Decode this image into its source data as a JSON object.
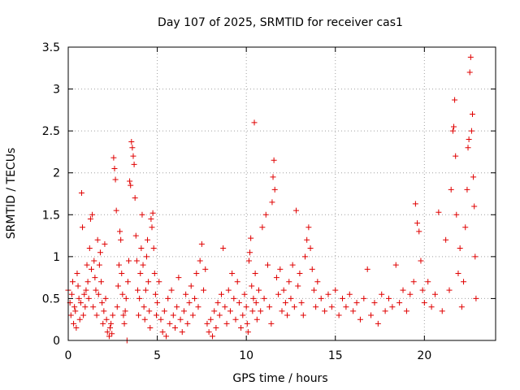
{
  "chart_data": {
    "type": "scatter",
    "title": "Day 107 of 2025, SRMTID for receiver cas1",
    "xlabel": "GPS time / hours",
    "ylabel": "SRMTID / TECUs",
    "xlim": [
      0,
      24
    ],
    "ylim": [
      0,
      3.5
    ],
    "xticks": [
      0,
      5,
      10,
      15,
      20
    ],
    "xtick_labels": [
      "0",
      "5",
      "10",
      "15",
      "20"
    ],
    "yticks": [
      0,
      0.5,
      1,
      1.5,
      2,
      2.5,
      3,
      3.5
    ],
    "ytick_labels": [
      "0",
      "0.5",
      "1",
      "1.5",
      "2",
      "2.5",
      "3",
      "3.5"
    ],
    "grid": true,
    "marker": "+",
    "color": "#e00000",
    "series": [
      {
        "name": "cas1",
        "points": [
          [
            0.0,
            0.6
          ],
          [
            0.1,
            0.45
          ],
          [
            0.15,
            0.3
          ],
          [
            0.2,
            0.55
          ],
          [
            0.25,
            0.7
          ],
          [
            0.3,
            0.2
          ],
          [
            0.35,
            0.4
          ],
          [
            0.4,
            0.35
          ],
          [
            0.45,
            0.15
          ],
          [
            0.5,
            0.8
          ],
          [
            0.55,
            0.65
          ],
          [
            0.6,
            0.5
          ],
          [
            0.65,
            0.25
          ],
          [
            0.7,
            0.45
          ],
          [
            0.75,
            1.76
          ],
          [
            0.8,
            1.35
          ],
          [
            0.85,
            0.3
          ],
          [
            0.9,
            0.55
          ],
          [
            0.95,
            0.4
          ],
          [
            1.0,
            0.6
          ],
          [
            1.05,
            0.9
          ],
          [
            1.1,
            0.7
          ],
          [
            1.15,
            0.5
          ],
          [
            1.2,
            1.1
          ],
          [
            1.25,
            1.45
          ],
          [
            1.3,
            0.85
          ],
          [
            1.35,
            1.5
          ],
          [
            1.4,
            0.4
          ],
          [
            1.45,
            0.95
          ],
          [
            1.5,
            0.75
          ],
          [
            1.55,
            0.6
          ],
          [
            1.6,
            0.3
          ],
          [
            1.65,
            1.2
          ],
          [
            1.7,
            0.55
          ],
          [
            1.75,
            0.9
          ],
          [
            1.8,
            1.05
          ],
          [
            1.85,
            0.7
          ],
          [
            1.9,
            0.45
          ],
          [
            1.95,
            0.2
          ],
          [
            2.0,
            0.35
          ],
          [
            2.05,
            1.15
          ],
          [
            2.1,
            0.5
          ],
          [
            2.15,
            0.25
          ],
          [
            2.2,
            0.1
          ],
          [
            2.3,
            0.05
          ],
          [
            2.35,
            0.15
          ],
          [
            2.4,
            0.2
          ],
          [
            2.45,
            0.08
          ],
          [
            2.5,
            0.3
          ],
          [
            2.55,
            2.18
          ],
          [
            2.6,
            2.05
          ],
          [
            2.65,
            1.92
          ],
          [
            2.7,
            1.55
          ],
          [
            2.75,
            0.4
          ],
          [
            2.8,
            0.65
          ],
          [
            2.85,
            0.9
          ],
          [
            2.9,
            1.3
          ],
          [
            2.95,
            1.2
          ],
          [
            3.0,
            0.8
          ],
          [
            3.05,
            0.55
          ],
          [
            3.1,
            0.3
          ],
          [
            3.15,
            0.2
          ],
          [
            3.2,
            0.35
          ],
          [
            3.25,
            0.5
          ],
          [
            3.3,
            0.0
          ],
          [
            3.35,
            0.7
          ],
          [
            3.4,
            0.95
          ],
          [
            3.45,
            1.9
          ],
          [
            3.5,
            1.85
          ],
          [
            3.55,
            2.37
          ],
          [
            3.6,
            2.3
          ],
          [
            3.65,
            2.2
          ],
          [
            3.7,
            2.1
          ],
          [
            3.75,
            1.7
          ],
          [
            3.8,
            1.25
          ],
          [
            3.85,
            0.95
          ],
          [
            3.9,
            0.6
          ],
          [
            3.95,
            0.3
          ],
          [
            4.0,
            0.5
          ],
          [
            4.05,
            0.8
          ],
          [
            4.1,
            1.1
          ],
          [
            4.15,
            1.5
          ],
          [
            4.2,
            0.9
          ],
          [
            4.25,
            0.4
          ],
          [
            4.3,
            0.25
          ],
          [
            4.35,
            0.6
          ],
          [
            4.4,
            1.0
          ],
          [
            4.45,
            1.2
          ],
          [
            4.5,
            0.7
          ],
          [
            4.55,
            0.35
          ],
          [
            4.6,
            0.15
          ],
          [
            4.65,
            1.45
          ],
          [
            4.7,
            1.35
          ],
          [
            4.75,
            1.52
          ],
          [
            4.8,
            1.1
          ],
          [
            4.85,
            0.8
          ],
          [
            4.9,
            0.55
          ],
          [
            4.95,
            0.3
          ],
          [
            5.0,
            0.45
          ],
          [
            5.1,
            0.7
          ],
          [
            5.2,
            0.25
          ],
          [
            5.3,
            0.1
          ],
          [
            5.4,
            0.35
          ],
          [
            5.5,
            0.05
          ],
          [
            5.6,
            0.5
          ],
          [
            5.7,
            0.2
          ],
          [
            5.8,
            0.6
          ],
          [
            5.9,
            0.3
          ],
          [
            6.0,
            0.15
          ],
          [
            6.1,
            0.4
          ],
          [
            6.2,
            0.75
          ],
          [
            6.3,
            0.25
          ],
          [
            6.4,
            0.1
          ],
          [
            6.5,
            0.35
          ],
          [
            6.6,
            0.55
          ],
          [
            6.7,
            0.2
          ],
          [
            6.8,
            0.45
          ],
          [
            6.9,
            0.65
          ],
          [
            7.0,
            0.3
          ],
          [
            7.1,
            0.5
          ],
          [
            7.2,
            0.8
          ],
          [
            7.3,
            0.4
          ],
          [
            7.4,
            0.95
          ],
          [
            7.5,
            1.15
          ],
          [
            7.6,
            0.6
          ],
          [
            7.7,
            0.85
          ],
          [
            7.8,
            0.2
          ],
          [
            7.9,
            0.1
          ],
          [
            8.0,
            0.25
          ],
          [
            8.1,
            0.05
          ],
          [
            8.2,
            0.35
          ],
          [
            8.3,
            0.15
          ],
          [
            8.4,
            0.45
          ],
          [
            8.5,
            0.3
          ],
          [
            8.6,
            0.55
          ],
          [
            8.7,
            1.1
          ],
          [
            8.8,
            0.4
          ],
          [
            8.9,
            0.2
          ],
          [
            9.0,
            0.6
          ],
          [
            9.1,
            0.35
          ],
          [
            9.2,
            0.8
          ],
          [
            9.3,
            0.5
          ],
          [
            9.4,
            0.25
          ],
          [
            9.5,
            0.7
          ],
          [
            9.6,
            0.45
          ],
          [
            9.7,
            0.15
          ],
          [
            9.8,
            0.3
          ],
          [
            9.9,
            0.55
          ],
          [
            10.0,
            0.4
          ],
          [
            10.05,
            0.2
          ],
          [
            10.1,
            0.1
          ],
          [
            10.15,
            0.95
          ],
          [
            10.2,
            1.05
          ],
          [
            10.25,
            1.22
          ],
          [
            10.3,
            0.65
          ],
          [
            10.35,
            0.35
          ],
          [
            10.4,
            0.5
          ],
          [
            10.45,
            2.6
          ],
          [
            10.5,
            0.8
          ],
          [
            10.55,
            0.45
          ],
          [
            10.6,
            0.25
          ],
          [
            10.7,
            0.6
          ],
          [
            10.8,
            0.35
          ],
          [
            10.9,
            1.35
          ],
          [
            11.0,
            0.5
          ],
          [
            11.1,
            1.5
          ],
          [
            11.2,
            0.9
          ],
          [
            11.3,
            0.4
          ],
          [
            11.4,
            0.2
          ],
          [
            11.45,
            1.65
          ],
          [
            11.5,
            1.95
          ],
          [
            11.55,
            2.15
          ],
          [
            11.6,
            1.8
          ],
          [
            11.7,
            0.75
          ],
          [
            11.8,
            0.55
          ],
          [
            11.9,
            0.85
          ],
          [
            12.0,
            0.35
          ],
          [
            12.1,
            0.6
          ],
          [
            12.2,
            0.45
          ],
          [
            12.3,
            0.3
          ],
          [
            12.4,
            0.7
          ],
          [
            12.5,
            0.5
          ],
          [
            12.6,
            0.9
          ],
          [
            12.7,
            0.4
          ],
          [
            12.8,
            1.55
          ],
          [
            12.9,
            0.65
          ],
          [
            13.0,
            0.8
          ],
          [
            13.1,
            0.45
          ],
          [
            13.2,
            0.3
          ],
          [
            13.3,
            1.0
          ],
          [
            13.4,
            1.2
          ],
          [
            13.5,
            1.35
          ],
          [
            13.6,
            1.1
          ],
          [
            13.7,
            0.85
          ],
          [
            13.8,
            0.6
          ],
          [
            13.9,
            0.4
          ],
          [
            14.0,
            0.7
          ],
          [
            14.2,
            0.5
          ],
          [
            14.4,
            0.35
          ],
          [
            14.6,
            0.55
          ],
          [
            14.8,
            0.4
          ],
          [
            15.0,
            0.6
          ],
          [
            15.2,
            0.3
          ],
          [
            15.4,
            0.5
          ],
          [
            15.6,
            0.4
          ],
          [
            15.8,
            0.55
          ],
          [
            16.0,
            0.35
          ],
          [
            16.2,
            0.45
          ],
          [
            16.4,
            0.25
          ],
          [
            16.6,
            0.5
          ],
          [
            16.8,
            0.85
          ],
          [
            17.0,
            0.3
          ],
          [
            17.2,
            0.45
          ],
          [
            17.4,
            0.2
          ],
          [
            17.6,
            0.55
          ],
          [
            17.8,
            0.35
          ],
          [
            18.0,
            0.5
          ],
          [
            18.2,
            0.4
          ],
          [
            18.4,
            0.9
          ],
          [
            18.6,
            0.45
          ],
          [
            18.8,
            0.6
          ],
          [
            19.0,
            0.35
          ],
          [
            19.2,
            0.55
          ],
          [
            19.4,
            0.7
          ],
          [
            19.5,
            1.63
          ],
          [
            19.6,
            1.4
          ],
          [
            19.7,
            1.3
          ],
          [
            19.8,
            0.95
          ],
          [
            19.9,
            0.6
          ],
          [
            20.0,
            0.45
          ],
          [
            20.2,
            0.7
          ],
          [
            20.4,
            0.4
          ],
          [
            20.6,
            0.55
          ],
          [
            20.8,
            1.53
          ],
          [
            21.0,
            0.35
          ],
          [
            21.2,
            1.2
          ],
          [
            21.4,
            0.6
          ],
          [
            21.5,
            1.8
          ],
          [
            21.6,
            2.5
          ],
          [
            21.65,
            2.55
          ],
          [
            21.7,
            2.87
          ],
          [
            21.75,
            2.2
          ],
          [
            21.8,
            1.5
          ],
          [
            21.9,
            0.8
          ],
          [
            22.0,
            1.1
          ],
          [
            22.1,
            0.4
          ],
          [
            22.2,
            0.7
          ],
          [
            22.3,
            1.35
          ],
          [
            22.4,
            1.8
          ],
          [
            22.45,
            2.3
          ],
          [
            22.5,
            2.4
          ],
          [
            22.55,
            3.2
          ],
          [
            22.6,
            3.38
          ],
          [
            22.65,
            2.5
          ],
          [
            22.7,
            2.7
          ],
          [
            22.75,
            1.95
          ],
          [
            22.8,
            1.6
          ],
          [
            22.85,
            1.0
          ],
          [
            22.9,
            0.5
          ]
        ]
      }
    ]
  }
}
